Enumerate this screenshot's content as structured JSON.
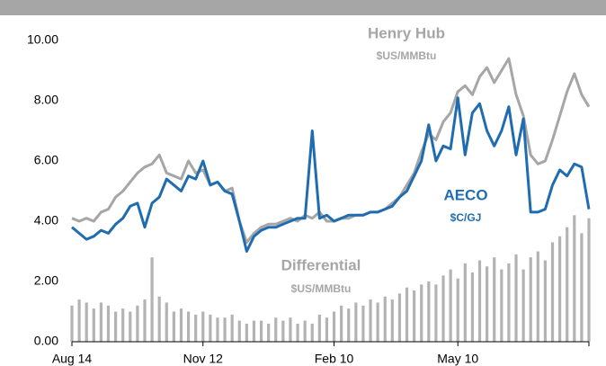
{
  "chart_data": {
    "type": "line-bar",
    "categories": [
      "Aug 14",
      null,
      null,
      null,
      null,
      null,
      null,
      null,
      null,
      null,
      null,
      null,
      null,
      null,
      null,
      null,
      null,
      null,
      "Nov 12",
      null,
      null,
      null,
      null,
      null,
      null,
      null,
      null,
      null,
      null,
      null,
      null,
      null,
      null,
      null,
      null,
      null,
      "Feb 10",
      null,
      null,
      null,
      null,
      null,
      null,
      null,
      null,
      null,
      null,
      null,
      null,
      null,
      null,
      null,
      null,
      "May 10",
      null,
      null,
      null,
      null,
      null,
      null,
      null,
      null,
      null,
      null,
      null,
      null,
      null,
      null,
      null,
      null,
      null,
      null
    ],
    "series": [
      {
        "name": "Henry Hub",
        "unit": "$US/MMBtu",
        "kind": "line",
        "color": "#a6a6a6",
        "values": [
          4.1,
          4.0,
          4.1,
          4.0,
          4.3,
          4.4,
          4.8,
          5.0,
          5.3,
          5.6,
          5.8,
          5.9,
          6.2,
          5.6,
          5.5,
          5.4,
          6.0,
          5.6,
          5.7,
          5.2,
          5.3,
          5.0,
          5.1,
          4.0,
          3.3,
          3.6,
          3.8,
          3.9,
          3.9,
          4.0,
          4.1,
          4.0,
          4.2,
          4.1,
          4.3,
          4.0,
          4.0,
          4.1,
          4.1,
          4.2,
          4.2,
          4.3,
          4.3,
          4.4,
          4.6,
          4.8,
          5.2,
          5.6,
          6.3,
          6.9,
          6.7,
          7.3,
          7.6,
          8.3,
          8.5,
          8.2,
          8.8,
          9.1,
          8.6,
          9.0,
          9.4,
          8.2,
          7.5,
          6.2,
          5.9,
          6.0,
          6.7,
          7.5,
          8.3,
          8.9,
          8.2,
          7.8
        ]
      },
      {
        "name": "AECO",
        "unit": "$C/GJ",
        "kind": "line",
        "color": "#1f6cb0",
        "values": [
          3.8,
          3.6,
          3.4,
          3.5,
          3.7,
          3.6,
          3.9,
          4.1,
          4.5,
          4.6,
          3.8,
          4.6,
          4.8,
          5.4,
          5.2,
          5.0,
          5.5,
          5.4,
          6.0,
          5.2,
          5.3,
          5.0,
          4.9,
          4.0,
          3.0,
          3.5,
          3.7,
          3.8,
          3.8,
          3.9,
          4.0,
          4.1,
          4.1,
          7.0,
          4.1,
          4.2,
          4.0,
          4.1,
          4.2,
          4.2,
          4.2,
          4.3,
          4.3,
          4.4,
          4.5,
          4.8,
          5.0,
          5.5,
          6.0,
          7.2,
          6.0,
          6.5,
          6.4,
          8.1,
          6.2,
          7.6,
          7.9,
          7.0,
          6.5,
          7.0,
          7.8,
          6.2,
          7.4,
          4.3,
          4.3,
          4.4,
          5.2,
          5.7,
          5.5,
          5.9,
          5.8,
          4.4
        ]
      },
      {
        "name": "Differential",
        "unit": "$US/MMBtu",
        "kind": "bar",
        "color": "#b3b3b3",
        "values": [
          1.2,
          1.4,
          1.3,
          1.1,
          1.3,
          1.2,
          1.0,
          1.1,
          1.0,
          1.2,
          1.4,
          2.8,
          1.5,
          1.3,
          1.0,
          1.1,
          1.0,
          0.9,
          1.0,
          0.9,
          0.8,
          0.8,
          0.9,
          0.7,
          0.6,
          0.7,
          0.7,
          0.6,
          0.8,
          0.7,
          0.8,
          0.6,
          0.7,
          0.6,
          0.9,
          0.8,
          1.0,
          1.2,
          1.1,
          1.3,
          1.2,
          1.4,
          1.3,
          1.5,
          1.4,
          1.6,
          1.8,
          1.7,
          1.9,
          2.0,
          1.9,
          2.2,
          2.4,
          2.1,
          2.6,
          2.3,
          2.7,
          2.5,
          2.8,
          2.4,
          2.6,
          2.9,
          2.4,
          2.8,
          3.0,
          2.7,
          3.3,
          3.5,
          3.8,
          4.2,
          3.6,
          4.1
        ]
      }
    ],
    "ylim": [
      0,
      10
    ],
    "yticks": [
      {
        "value": 0,
        "label": "0.00"
      },
      {
        "value": 2,
        "label": "2.00"
      },
      {
        "value": 4,
        "label": "4.00"
      },
      {
        "value": 6,
        "label": "6.00"
      },
      {
        "value": 8,
        "label": "8.00"
      },
      {
        "value": 10,
        "label": "10.00"
      }
    ],
    "grid": false
  }
}
